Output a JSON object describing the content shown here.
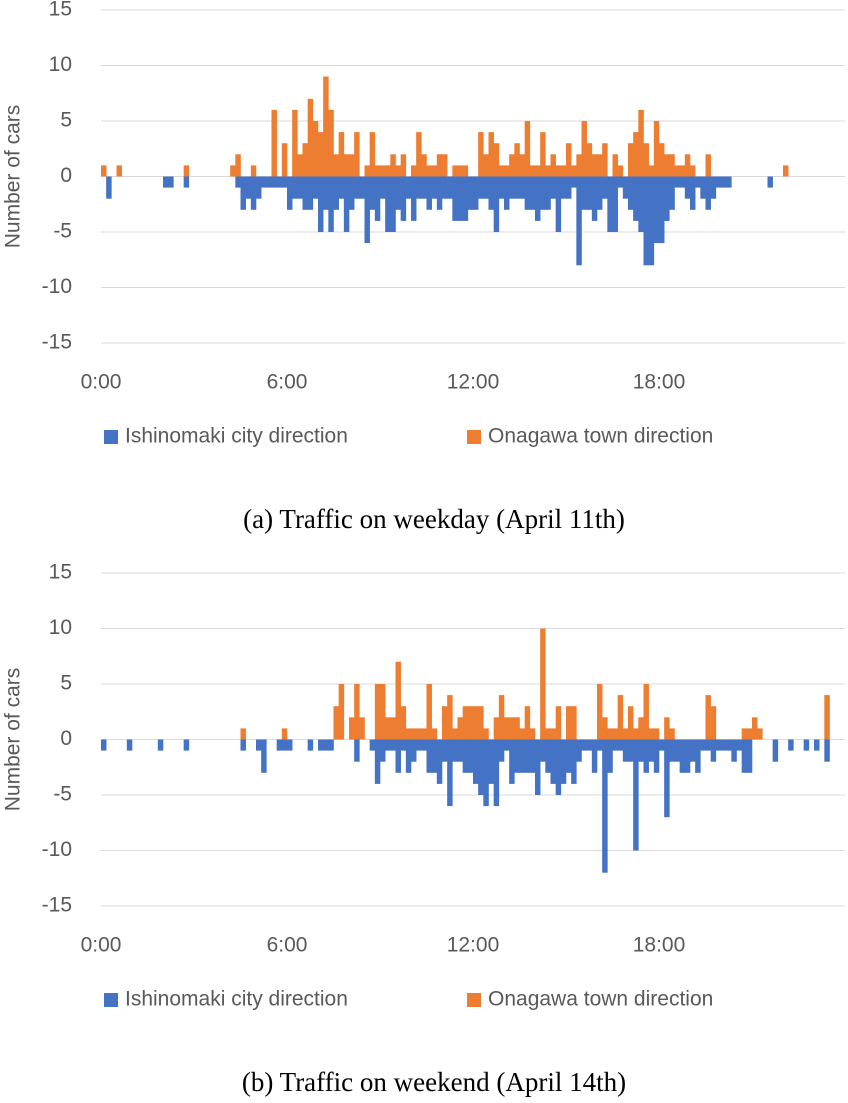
{
  "chart_data": [
    {
      "type": "bar",
      "caption": "(a) Traffic on weekday (April 11th)",
      "y_label": "Number of cars",
      "categories": [
        "0:00",
        null,
        null,
        null,
        null,
        null,
        null,
        null,
        null,
        null,
        null,
        null,
        null,
        null,
        null,
        null,
        null,
        null,
        null,
        null,
        null,
        null,
        null,
        null,
        null,
        null,
        null,
        null,
        null,
        null,
        null,
        null,
        null,
        null,
        null,
        null,
        "6:00",
        null,
        null,
        null,
        null,
        null,
        null,
        null,
        null,
        null,
        null,
        null,
        null,
        null,
        null,
        null,
        null,
        null,
        null,
        null,
        null,
        null,
        null,
        null,
        null,
        null,
        null,
        null,
        null,
        null,
        null,
        null,
        null,
        null,
        null,
        null,
        "12:00",
        null,
        null,
        null,
        null,
        null,
        null,
        null,
        null,
        null,
        null,
        null,
        null,
        null,
        null,
        null,
        null,
        null,
        null,
        null,
        null,
        null,
        null,
        null,
        null,
        null,
        null,
        null,
        null,
        null,
        null,
        null,
        null,
        null,
        null,
        null,
        "18:00",
        null,
        null,
        null,
        null,
        null,
        null,
        null,
        null,
        null,
        null,
        null,
        null,
        null,
        null,
        null,
        null,
        null,
        null,
        null,
        null,
        null,
        null,
        null,
        null,
        null,
        null,
        null,
        null,
        null,
        null,
        null,
        null,
        null,
        null,
        null
      ],
      "series": [
        {
          "name": "Ishinomaki city direction",
          "color": "#4472c4",
          "values": [
            0,
            -2,
            0,
            0,
            0,
            0,
            0,
            0,
            0,
            0,
            0,
            0,
            -1,
            -1,
            0,
            0,
            -1,
            0,
            0,
            0,
            0,
            0,
            0,
            0,
            0,
            0,
            -1,
            -3,
            -2,
            -3,
            -2,
            -1,
            -1,
            -1,
            -1,
            -1,
            -3,
            -2,
            -2,
            -3,
            -3,
            -2,
            -5,
            -3,
            -5,
            -3,
            -2,
            -5,
            -3,
            -2,
            -2,
            -6,
            -3,
            -4,
            -2,
            -5,
            -5,
            -3,
            -4,
            -2,
            -4,
            -2,
            -2,
            -3,
            -2,
            -3,
            -2,
            -2,
            -4,
            -4,
            -4,
            -3,
            -3,
            -2,
            -2,
            -3,
            -5,
            -2,
            -3,
            -2,
            -2,
            -2,
            -3,
            -3,
            -4,
            -3,
            -3,
            -2,
            -5,
            -2,
            -2,
            -1,
            -8,
            -3,
            -3,
            -4,
            -3,
            -2,
            -5,
            -5,
            -1,
            -2,
            -3,
            -4,
            -5,
            -8,
            -8,
            -6,
            -6,
            -4,
            -3,
            -1,
            -1,
            -2,
            -3,
            -1,
            -2,
            -3,
            -2,
            -1,
            -1,
            -1,
            0,
            0,
            0,
            0,
            0,
            0,
            0,
            -1,
            0,
            0,
            0,
            0,
            0,
            0,
            0,
            0,
            0,
            0,
            0,
            0,
            0,
            0
          ]
        },
        {
          "name": "Onagawa town direction",
          "color": "#ed7d31",
          "values": [
            1,
            0,
            0,
            1,
            0,
            0,
            0,
            0,
            0,
            0,
            0,
            0,
            0,
            0,
            0,
            0,
            1,
            0,
            0,
            0,
            0,
            0,
            0,
            0,
            0,
            1,
            2,
            0,
            0,
            1,
            0,
            0,
            0,
            6,
            0,
            3,
            0,
            6,
            2,
            3,
            7,
            5,
            4,
            9,
            6,
            2,
            4,
            2,
            2,
            4,
            0,
            1,
            4,
            1,
            1,
            1,
            2,
            1,
            2,
            0,
            1,
            4,
            2,
            1,
            1,
            2,
            2,
            0,
            1,
            1,
            1,
            0,
            0,
            4,
            2,
            4,
            3,
            1,
            1,
            2,
            3,
            2,
            5,
            1,
            1,
            4,
            1,
            2,
            1,
            1,
            3,
            1,
            2,
            5,
            3,
            2,
            2,
            3,
            0,
            2,
            1,
            0,
            3,
            4,
            6,
            3,
            1,
            5,
            3,
            2,
            2,
            1,
            1,
            2,
            1,
            0,
            0,
            2,
            0,
            0,
            0,
            0,
            0,
            0,
            0,
            0,
            0,
            0,
            0,
            0,
            0,
            0,
            1,
            0,
            0,
            0,
            0,
            0,
            0,
            0,
            0,
            0,
            0,
            0
          ]
        }
      ],
      "ylim": [
        -15,
        15
      ],
      "yticks": [
        -15,
        -10,
        -5,
        0,
        5,
        10,
        15
      ],
      "grid": true,
      "legend": "bottom"
    },
    {
      "type": "bar",
      "caption": "(b) Traffic on weekend (April 14th)",
      "y_label": "Number of cars",
      "categories": [
        "0:00",
        null,
        null,
        null,
        null,
        null,
        null,
        null,
        null,
        null,
        null,
        null,
        null,
        null,
        null,
        null,
        null,
        null,
        null,
        null,
        null,
        null,
        null,
        null,
        null,
        null,
        null,
        null,
        null,
        null,
        null,
        null,
        null,
        null,
        null,
        null,
        "6:00",
        null,
        null,
        null,
        null,
        null,
        null,
        null,
        null,
        null,
        null,
        null,
        null,
        null,
        null,
        null,
        null,
        null,
        null,
        null,
        null,
        null,
        null,
        null,
        null,
        null,
        null,
        null,
        null,
        null,
        null,
        null,
        null,
        null,
        null,
        null,
        "12:00",
        null,
        null,
        null,
        null,
        null,
        null,
        null,
        null,
        null,
        null,
        null,
        null,
        null,
        null,
        null,
        null,
        null,
        null,
        null,
        null,
        null,
        null,
        null,
        null,
        null,
        null,
        null,
        null,
        null,
        null,
        null,
        null,
        null,
        null,
        null,
        "18:00",
        null,
        null,
        null,
        null,
        null,
        null,
        null,
        null,
        null,
        null,
        null,
        null,
        null,
        null,
        null,
        null,
        null,
        null,
        null,
        null,
        null,
        null,
        null,
        null,
        null,
        null,
        null,
        null,
        null,
        null,
        null,
        null,
        null,
        null,
        null
      ],
      "series": [
        {
          "name": "Ishinomaki city direction",
          "color": "#4472c4",
          "values": [
            -1,
            0,
            0,
            0,
            0,
            -1,
            0,
            0,
            0,
            0,
            0,
            -1,
            0,
            0,
            0,
            0,
            -1,
            0,
            0,
            0,
            0,
            0,
            0,
            0,
            0,
            0,
            0,
            -1,
            0,
            0,
            -1,
            -3,
            0,
            0,
            -1,
            -1,
            -1,
            0,
            0,
            0,
            -1,
            0,
            -1,
            -1,
            -1,
            0,
            0,
            0,
            0,
            -2,
            0,
            0,
            -1,
            -4,
            -2,
            -1,
            -1,
            -3,
            -1,
            -3,
            -2,
            -1,
            -1,
            -3,
            -3,
            -4,
            -2,
            -6,
            -2,
            -2,
            -3,
            -3,
            -4,
            -5,
            -6,
            -4,
            -6,
            -2,
            -1,
            -4,
            -3,
            -3,
            -3,
            -3,
            -5,
            -2,
            -3,
            -4,
            -5,
            -4,
            -3,
            -4,
            -2,
            -1,
            -1,
            -3,
            -1,
            -12,
            -3,
            -1,
            -1,
            -2,
            -2,
            -10,
            -2,
            -3,
            -2,
            -3,
            -1,
            -7,
            -2,
            -2,
            -3,
            -3,
            -2,
            -3,
            -1,
            -1,
            -2,
            -1,
            -1,
            -1,
            -2,
            -1,
            -3,
            -3,
            0,
            0,
            0,
            0,
            -2,
            0,
            0,
            -1,
            0,
            0,
            -1,
            0,
            -1,
            0,
            -2,
            0,
            0,
            0
          ]
        },
        {
          "name": "Onagawa town direction",
          "color": "#ed7d31",
          "values": [
            0,
            0,
            0,
            0,
            0,
            0,
            0,
            0,
            0,
            0,
            0,
            0,
            0,
            0,
            0,
            0,
            0,
            0,
            0,
            0,
            0,
            0,
            0,
            0,
            0,
            0,
            0,
            1,
            0,
            0,
            0,
            0,
            0,
            0,
            0,
            1,
            0,
            0,
            0,
            0,
            0,
            0,
            0,
            0,
            0,
            3,
            5,
            0,
            2,
            5,
            2,
            0,
            0,
            5,
            5,
            2,
            2,
            7,
            3,
            1,
            1,
            1,
            1,
            5,
            1,
            0,
            3,
            4,
            1,
            2,
            3,
            3,
            3,
            3,
            1,
            0,
            2,
            4,
            2,
            2,
            2,
            1,
            3,
            1,
            0,
            10,
            1,
            1,
            3,
            0,
            3,
            3,
            0,
            0,
            0,
            0,
            5,
            2,
            1,
            1,
            4,
            1,
            3,
            1,
            2,
            5,
            1,
            1,
            0,
            2,
            1,
            0,
            0,
            0,
            0,
            0,
            0,
            4,
            3,
            0,
            0,
            0,
            0,
            0,
            1,
            1,
            2,
            1,
            0,
            0,
            0,
            0,
            0,
            0,
            0,
            0,
            0,
            0,
            0,
            0,
            4,
            0,
            0,
            0
          ]
        }
      ],
      "ylim": [
        -15,
        15
      ],
      "yticks": [
        -15,
        -10,
        -5,
        0,
        5,
        10,
        15
      ],
      "grid": true,
      "legend": "bottom"
    }
  ]
}
